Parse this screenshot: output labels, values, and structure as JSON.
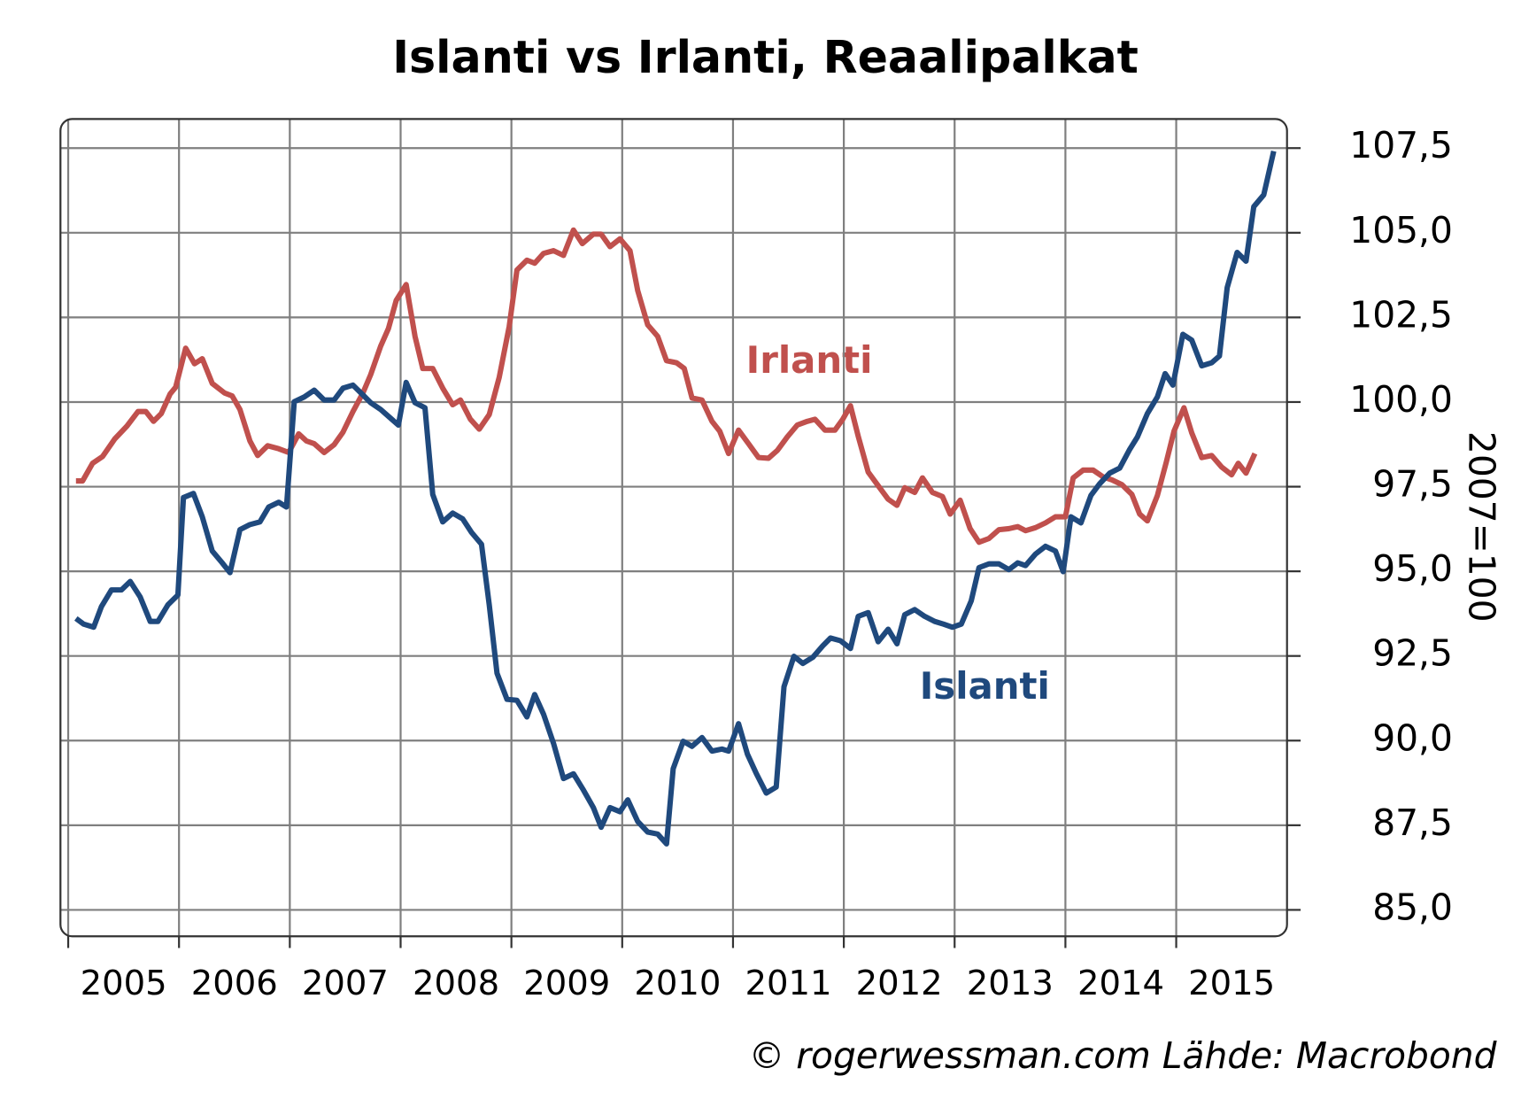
{
  "chart_data": {
    "type": "line",
    "title": "Islanti vs Irlanti, Reaalipalkat",
    "ylabel": "2007=100",
    "source": "© rogerwessman.com Lähde: Macrobond",
    "xlim": [
      2004.93,
      2016.0
    ],
    "xticks": [
      2005,
      2006,
      2007,
      2008,
      2009,
      2010,
      2011,
      2012,
      2013,
      2014,
      2015
    ],
    "ylim": [
      84.22,
      108.36
    ],
    "yticks": [
      {
        "value": 85,
        "label": "85,0"
      },
      {
        "value": 87.5,
        "label": "87,5"
      },
      {
        "value": 90,
        "label": "90,0"
      },
      {
        "value": 92.5,
        "label": "92,5"
      },
      {
        "value": 95,
        "label": "95,0"
      },
      {
        "value": 97.5,
        "label": "97,5"
      },
      {
        "value": 100,
        "label": "100,0"
      },
      {
        "value": 102.5,
        "label": "102,5"
      },
      {
        "value": 105,
        "label": "105,0"
      },
      {
        "value": 107.5,
        "label": "107,5"
      }
    ],
    "grid": true,
    "series": [
      {
        "name": "Irlanti",
        "color": "#c0504d",
        "x": [
          2005.07,
          2005.13,
          2005.22,
          2005.31,
          2005.42,
          2005.53,
          2005.63,
          2005.7,
          2005.77,
          2005.84,
          2005.92,
          2005.97,
          2006.06,
          2006.14,
          2006.21,
          2006.3,
          2006.41,
          2006.48,
          2006.55,
          2006.64,
          2006.71,
          2006.8,
          2006.9,
          2006.99,
          2007.08,
          2007.15,
          2007.22,
          2007.31,
          2007.4,
          2007.48,
          2007.57,
          2007.66,
          2007.73,
          2007.82,
          2007.89,
          2007.96,
          2008.05,
          2008.13,
          2008.2,
          2008.29,
          2008.38,
          2008.47,
          2008.54,
          2008.63,
          2008.71,
          2008.8,
          2008.89,
          2008.98,
          2009.05,
          2009.14,
          2009.21,
          2009.29,
          2009.38,
          2009.47,
          2009.56,
          2009.64,
          2009.74,
          2009.81,
          2009.89,
          2009.98,
          2010.07,
          2010.14,
          2010.23,
          2010.32,
          2010.4,
          2010.49,
          2010.56,
          2010.63,
          2010.72,
          2010.81,
          2010.88,
          2010.96,
          2011.05,
          2011.14,
          2011.23,
          2011.32,
          2011.4,
          2011.49,
          2011.58,
          2011.67,
          2011.74,
          2011.83,
          2011.92,
          2011.99,
          2012.06,
          2012.13,
          2012.22,
          2012.31,
          2012.4,
          2012.48,
          2012.55,
          2012.64,
          2012.71,
          2012.8,
          2012.89,
          2012.96,
          2013.05,
          2013.14,
          2013.22,
          2013.31,
          2013.4,
          2013.49,
          2013.57,
          2013.64,
          2013.73,
          2013.82,
          2013.91,
          2014.0,
          2014.07,
          2014.16,
          2014.25,
          2014.34,
          2014.42,
          2014.51,
          2014.6,
          2014.67,
          2014.74,
          2014.83,
          2014.91,
          2014.98,
          2015.07,
          2015.14,
          2015.23,
          2015.32,
          2015.41,
          2015.5,
          2015.56,
          2015.63,
          2015.71
        ],
        "values": [
          97.67,
          97.67,
          98.19,
          98.39,
          98.91,
          99.29,
          99.72,
          99.72,
          99.43,
          99.66,
          100.24,
          100.44,
          101.59,
          101.13,
          101.28,
          100.55,
          100.27,
          100.18,
          99.78,
          98.85,
          98.42,
          98.71,
          98.62,
          98.51,
          99.06,
          98.85,
          98.77,
          98.51,
          98.74,
          99.11,
          99.72,
          100.27,
          100.81,
          101.65,
          102.17,
          103.0,
          103.47,
          101.94,
          100.99,
          100.99,
          100.41,
          99.92,
          100.06,
          99.49,
          99.2,
          99.63,
          100.73,
          102.23,
          103.9,
          104.19,
          104.1,
          104.39,
          104.47,
          104.33,
          105.08,
          104.68,
          104.96,
          104.96,
          104.59,
          104.82,
          104.47,
          103.29,
          102.28,
          101.94,
          101.22,
          101.16,
          100.99,
          100.12,
          100.06,
          99.43,
          99.14,
          98.48,
          99.17,
          98.77,
          98.36,
          98.34,
          98.57,
          98.97,
          99.32,
          99.43,
          99.49,
          99.17,
          99.17,
          99.49,
          99.89,
          98.99,
          97.93,
          97.53,
          97.13,
          96.95,
          97.47,
          97.33,
          97.76,
          97.33,
          97.21,
          96.69,
          97.1,
          96.26,
          95.86,
          95.97,
          96.23,
          96.26,
          96.32,
          96.2,
          96.29,
          96.43,
          96.61,
          96.61,
          97.76,
          97.99,
          97.99,
          97.79,
          97.7,
          97.56,
          97.27,
          96.69,
          96.49,
          97.24,
          98.22,
          99.14,
          99.83,
          99.09,
          98.36,
          98.42,
          98.08,
          97.85,
          98.19,
          97.9,
          98.48
        ]
      },
      {
        "name": "Islanti",
        "color": "#1f497d",
        "x": [
          2005.07,
          2005.14,
          2005.23,
          2005.3,
          2005.39,
          2005.48,
          2005.56,
          2005.65,
          2005.74,
          2005.81,
          2005.9,
          2005.99,
          2006.04,
          2006.13,
          2006.21,
          2006.3,
          2006.39,
          2006.46,
          2006.55,
          2006.64,
          2006.73,
          2006.81,
          2006.9,
          2006.97,
          2007.04,
          2007.13,
          2007.22,
          2007.31,
          2007.4,
          2007.48,
          2007.57,
          2007.66,
          2007.73,
          2007.82,
          2007.9,
          2007.98,
          2008.05,
          2008.13,
          2008.22,
          2008.29,
          2008.38,
          2008.47,
          2008.56,
          2008.64,
          2008.73,
          2008.8,
          2008.87,
          2008.96,
          2009.05,
          2009.14,
          2009.21,
          2009.29,
          2009.38,
          2009.47,
          2009.56,
          2009.65,
          2009.74,
          2009.81,
          2009.89,
          2009.98,
          2010.05,
          2010.14,
          2010.23,
          2010.32,
          2010.4,
          2010.46,
          2010.55,
          2010.63,
          2010.72,
          2010.81,
          2010.9,
          2010.96,
          2011.05,
          2011.13,
          2011.21,
          2011.3,
          2011.39,
          2011.46,
          2011.55,
          2011.63,
          2011.72,
          2011.81,
          2011.88,
          2011.97,
          2012.06,
          2012.13,
          2012.22,
          2012.31,
          2012.4,
          2012.48,
          2012.55,
          2012.64,
          2012.73,
          2012.82,
          2012.9,
          2012.98,
          2013.06,
          2013.15,
          2013.22,
          2013.31,
          2013.4,
          2013.49,
          2013.57,
          2013.64,
          2013.73,
          2013.82,
          2013.91,
          2013.98,
          2014.05,
          2014.14,
          2014.23,
          2014.31,
          2014.4,
          2014.49,
          2014.58,
          2014.65,
          2014.74,
          2014.83,
          2014.9,
          2014.97,
          2015.06,
          2015.14,
          2015.23,
          2015.32,
          2015.39,
          2015.46,
          2015.55,
          2015.63,
          2015.7,
          2015.79,
          2015.88
        ],
        "values": [
          93.61,
          93.44,
          93.35,
          93.96,
          94.45,
          94.45,
          94.7,
          94.24,
          93.52,
          93.52,
          94.01,
          94.3,
          97.18,
          97.3,
          96.61,
          95.6,
          95.25,
          94.96,
          96.23,
          96.38,
          96.46,
          96.9,
          97.04,
          96.9,
          100.01,
          100.15,
          100.35,
          100.06,
          100.06,
          100.41,
          100.5,
          100.21,
          99.98,
          99.78,
          99.55,
          99.32,
          100.58,
          99.98,
          99.83,
          97.27,
          96.46,
          96.72,
          96.55,
          96.15,
          95.8,
          94.01,
          91.99,
          91.22,
          91.19,
          90.7,
          91.36,
          90.78,
          89.92,
          88.88,
          89.02,
          88.54,
          88.02,
          87.44,
          88.02,
          87.9,
          88.25,
          87.61,
          87.3,
          87.24,
          86.95,
          89.17,
          89.98,
          89.83,
          90.09,
          89.69,
          89.75,
          89.69,
          90.5,
          89.6,
          89.03,
          88.45,
          88.63,
          91.59,
          92.49,
          92.28,
          92.46,
          92.8,
          93.03,
          92.95,
          92.72,
          93.67,
          93.78,
          92.92,
          93.29,
          92.86,
          93.72,
          93.87,
          93.67,
          93.52,
          93.44,
          93.35,
          93.44,
          94.13,
          95.11,
          95.22,
          95.22,
          95.05,
          95.25,
          95.17,
          95.51,
          95.74,
          95.6,
          94.99,
          96.61,
          96.43,
          97.24,
          97.59,
          97.9,
          98.05,
          98.6,
          98.97,
          99.66,
          100.15,
          100.84,
          100.5,
          102.0,
          101.83,
          101.07,
          101.16,
          101.36,
          103.38,
          104.42,
          104.16,
          105.77,
          106.12,
          107.41
        ]
      }
    ]
  }
}
